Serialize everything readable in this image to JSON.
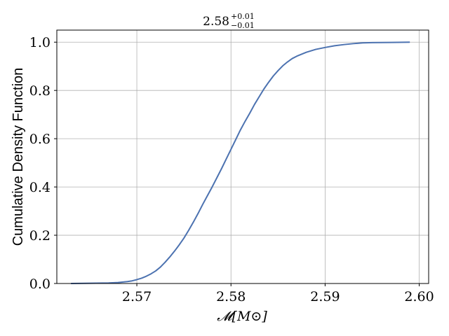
{
  "chart_data": {
    "type": "line",
    "title": {
      "main": "2.58",
      "sup": "+0.01",
      "sub": "−0.01"
    },
    "xlabel": "𝓜[M⊙]",
    "ylabel": "Cumulative Density Function",
    "xlim": [
      2.5615,
      2.601
    ],
    "ylim": [
      0.0,
      1.05
    ],
    "xticks": [
      2.57,
      2.58,
      2.59,
      2.6
    ],
    "xtick_labels": [
      "2.57",
      "2.58",
      "2.59",
      "2.60"
    ],
    "yticks": [
      0.0,
      0.2,
      0.4,
      0.6,
      0.8,
      1.0
    ],
    "ytick_labels": [
      "0.0",
      "0.2",
      "0.4",
      "0.6",
      "0.8",
      "1.0"
    ],
    "grid": true,
    "color": "#4c72b0",
    "series": [
      {
        "x": [
          2.563,
          2.565,
          2.567,
          2.568,
          2.569,
          2.5695,
          2.57,
          2.5705,
          2.571,
          2.5715,
          2.572,
          2.5725,
          2.573,
          2.5735,
          2.574,
          2.5745,
          2.575,
          2.5755,
          2.576,
          2.5765,
          2.577,
          2.5775,
          2.578,
          2.5785,
          2.579,
          2.5795,
          2.58,
          2.5805,
          2.581,
          2.5815,
          2.582,
          2.5825,
          2.583,
          2.5835,
          2.584,
          2.5845,
          2.585,
          2.5855,
          2.586,
          2.5865,
          2.587,
          2.588,
          2.589,
          2.59,
          2.591,
          2.592,
          2.593,
          2.594,
          2.595,
          2.597,
          2.599
        ],
        "y": [
          0.0,
          0.001,
          0.002,
          0.004,
          0.008,
          0.011,
          0.016,
          0.022,
          0.03,
          0.04,
          0.052,
          0.068,
          0.088,
          0.11,
          0.134,
          0.16,
          0.188,
          0.22,
          0.254,
          0.29,
          0.328,
          0.364,
          0.4,
          0.438,
          0.476,
          0.516,
          0.556,
          0.596,
          0.636,
          0.672,
          0.706,
          0.742,
          0.774,
          0.806,
          0.834,
          0.86,
          0.882,
          0.902,
          0.918,
          0.932,
          0.942,
          0.958,
          0.97,
          0.978,
          0.985,
          0.99,
          0.994,
          0.997,
          0.998,
          0.999,
          1.0
        ]
      }
    ]
  }
}
